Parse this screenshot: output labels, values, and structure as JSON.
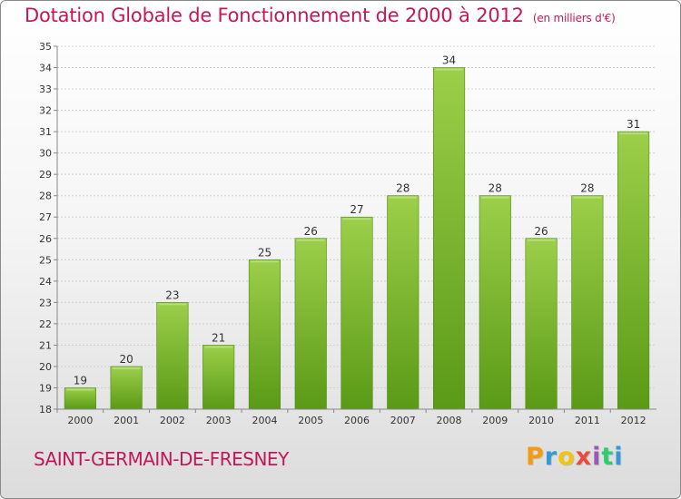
{
  "title": "Dotation Globale de Fonctionnement de 2000 à 2012",
  "unit_note": "(en milliers d'€)",
  "commune": "SAINT-GERMAIN-DE-FRESNEY",
  "logo": {
    "letters": [
      "P",
      "r",
      "o",
      "x",
      "i",
      "t",
      "i"
    ],
    "colors": [
      "#f39c12",
      "#3498db",
      "#f1c40f",
      "#e74c3c",
      "#9b59b6",
      "#2ecc71",
      "#3498db"
    ]
  },
  "colors": {
    "bar_top": "#9ccf4a",
    "bar_bottom": "#5a9a16",
    "accent": "#c2185b"
  },
  "chart_data": {
    "type": "bar",
    "categories": [
      "2000",
      "2001",
      "2002",
      "2003",
      "2004",
      "2005",
      "2006",
      "2007",
      "2008",
      "2009",
      "2010",
      "2011",
      "2012"
    ],
    "values": [
      19,
      20,
      23,
      21,
      25,
      26,
      27,
      28,
      34,
      28,
      26,
      28,
      31
    ],
    "ylim": [
      18,
      35
    ],
    "yticks": [
      18,
      19,
      20,
      21,
      22,
      23,
      24,
      25,
      26,
      27,
      28,
      29,
      30,
      31,
      32,
      33,
      34,
      35
    ],
    "grid": true
  }
}
